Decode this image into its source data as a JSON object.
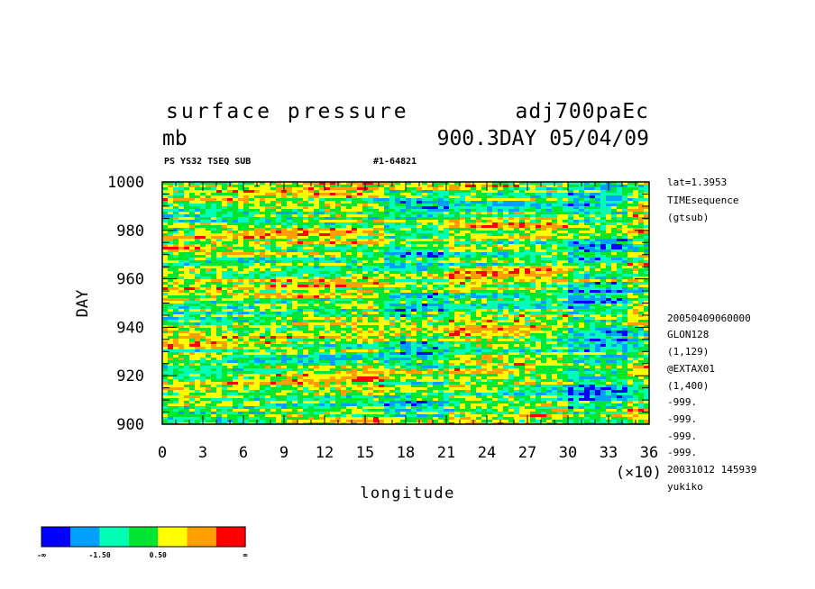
{
  "chart_data": {
    "type": "heatmap",
    "title": "surface pressure",
    "experiment": "adj700paEc",
    "units": "mb",
    "time_label": "900.3DAY 05/04/09",
    "subtitle_left": "PS YS32 TSEQ SUB",
    "subtitle_right": "#1-64821",
    "xlabel": "longitude",
    "ylabel": "DAY",
    "x_scale_note": "(×10)",
    "xlim": [
      0,
      36
    ],
    "ylim": [
      900,
      1000
    ],
    "x_ticks": [
      "0",
      "3",
      "6",
      "9",
      "12",
      "15",
      "18",
      "21",
      "24",
      "27",
      "30",
      "33",
      "36"
    ],
    "y_ticks": [
      "900",
      "920",
      "940",
      "960",
      "980",
      "1000"
    ],
    "colorbar": {
      "colors": [
        "#0000ff",
        "#00a0ff",
        "#00ffb4",
        "#00e632",
        "#ffff00",
        "#ffa000",
        "#ff0000"
      ],
      "labels": [
        "-∞",
        "-1.50",
        "0.50",
        "∞"
      ]
    },
    "info_lines": [
      "lat=1.3953",
      "TIMEsequence",
      "(gtsub)",
      "20050409060000",
      "GLON128",
      "(1,129)",
      "@EXTAX01",
      "(1,400)",
      "-999.",
      "-999.",
      "-999.",
      "-999.",
      "20031012 145939",
      "yukiko"
    ]
  }
}
